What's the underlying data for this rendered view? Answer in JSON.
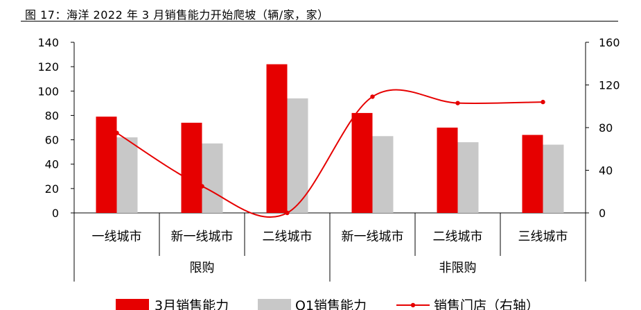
{
  "figure": {
    "title": "图 17：海洋 2022 年 3 月销售能力开始爬坡（辆/家，家）"
  },
  "colors": {
    "march": "#e60000",
    "q1": "#c8c8c8",
    "stores": "#e60000",
    "axis": "#000000"
  },
  "chart_data": {
    "type": "bar",
    "categories": [
      "一线城市",
      "新一线城市",
      "二线城市",
      "新一线城市",
      "二线城市",
      "三线城市"
    ],
    "groups": [
      {
        "label": "限购",
        "categories": [
          "一线城市",
          "新一线城市",
          "二线城市"
        ]
      },
      {
        "label": "非限购",
        "categories": [
          "新一线城市",
          "二线城市",
          "三线城市"
        ]
      }
    ],
    "series": [
      {
        "name": "3月销售能力",
        "type": "bar",
        "axis": "left",
        "color": "#e60000",
        "values": [
          79,
          74,
          122,
          82,
          70,
          64
        ]
      },
      {
        "name": "Q1销售能力",
        "type": "bar",
        "axis": "left",
        "color": "#c8c8c8",
        "values": [
          62,
          57,
          94,
          63,
          58,
          56
        ]
      },
      {
        "name": "销售门店（右轴）",
        "type": "line",
        "axis": "right",
        "smooth": true,
        "color": "#e60000",
        "values": [
          75,
          25,
          0,
          109,
          103,
          104
        ]
      }
    ],
    "y_left": {
      "min": 0,
      "max": 140,
      "ticks": [
        0,
        20,
        40,
        60,
        80,
        100,
        120,
        140
      ]
    },
    "y_right": {
      "min": 0,
      "max": 160,
      "ticks": [
        0,
        40,
        80,
        120,
        160
      ]
    },
    "legend_position": "bottom",
    "grid": false
  }
}
